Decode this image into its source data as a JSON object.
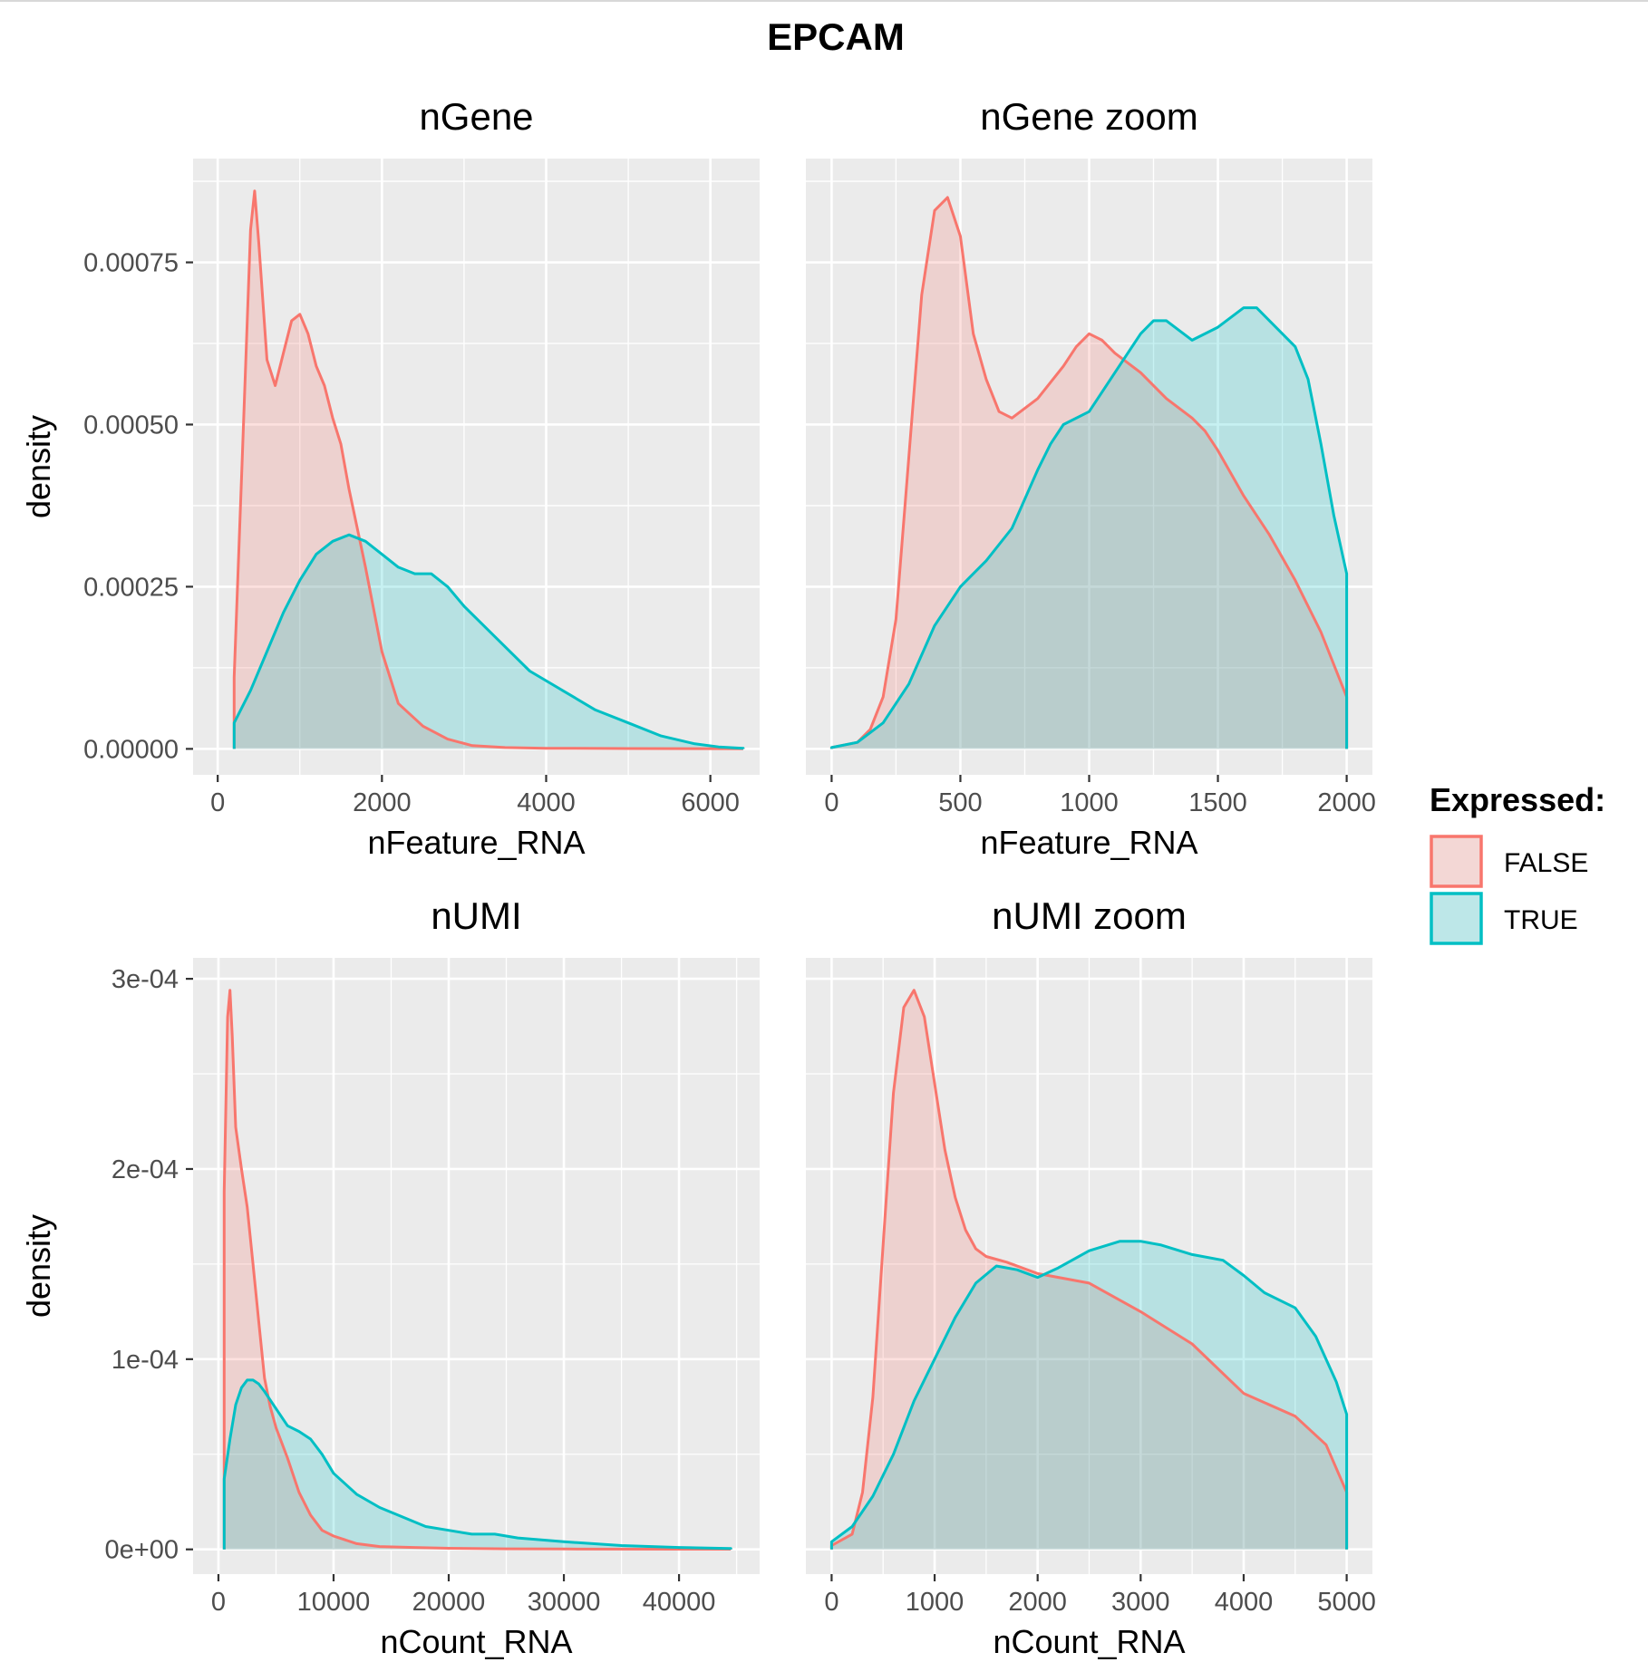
{
  "figure": {
    "title": "EPCAM",
    "legend": {
      "title": "Expressed:",
      "items": [
        {
          "label": "FALSE",
          "line": "#F8766D",
          "fill": "#F8766D"
        },
        {
          "label": "TRUE",
          "line": "#00BFC4",
          "fill": "#00BFC4"
        }
      ],
      "placement": "right"
    },
    "colors": {
      "panel_bg": "#EBEBEB",
      "grid": "#FFFFFF",
      "false": "#F8766D",
      "true": "#00BFC4"
    }
  },
  "chart_data": [
    {
      "type": "area",
      "title": "nGene",
      "xlabel": "nFeature_RNA",
      "ylabel": "density",
      "xlim": [
        -300,
        6600
      ],
      "ylim": [
        -4e-05,
        0.00091
      ],
      "xticks": [
        0,
        2000,
        4000,
        6000
      ],
      "xtick_labels": [
        "0",
        "2000",
        "4000",
        "6000"
      ],
      "yticks": [
        0,
        0.00025,
        0.0005,
        0.00075
      ],
      "ytick_labels": [
        "0.00000",
        "0.00025",
        "0.00050",
        "0.00075"
      ],
      "series": [
        {
          "name": "FALSE",
          "x": [
            200,
            300,
            400,
            450,
            500,
            600,
            700,
            800,
            900,
            1000,
            1100,
            1200,
            1300,
            1400,
            1500,
            1600,
            1800,
            2000,
            2200,
            2500,
            2800,
            3100,
            3500,
            4000,
            5000,
            6400
          ],
          "values": [
            0.00011,
            0.00045,
            0.0008,
            0.00086,
            0.00078,
            0.0006,
            0.00056,
            0.00061,
            0.00066,
            0.00067,
            0.00064,
            0.00059,
            0.00056,
            0.00051,
            0.00047,
            0.0004,
            0.00028,
            0.00015,
            7e-05,
            3.5e-05,
            1.5e-05,
            5e-06,
            2e-06,
            1e-06,
            5e-07,
            3e-07
          ]
        },
        {
          "name": "TRUE",
          "x": [
            200,
            400,
            600,
            800,
            1000,
            1200,
            1400,
            1600,
            1800,
            2000,
            2200,
            2400,
            2600,
            2800,
            3000,
            3400,
            3800,
            4200,
            4600,
            5000,
            5400,
            5800,
            6100,
            6400
          ],
          "values": [
            4e-05,
            9e-05,
            0.00015,
            0.00021,
            0.00026,
            0.0003,
            0.00032,
            0.00033,
            0.00032,
            0.0003,
            0.00028,
            0.00027,
            0.00027,
            0.00025,
            0.00022,
            0.00017,
            0.00012,
            9e-05,
            6e-05,
            4e-05,
            2e-05,
            8e-06,
            3e-06,
            1e-06
          ]
        }
      ]
    },
    {
      "type": "area",
      "title": "nGene zoom",
      "xlabel": "nFeature_RNA",
      "ylabel": "",
      "xlim": [
        -100,
        2100
      ],
      "ylim": [
        -4e-05,
        0.00091
      ],
      "xticks": [
        0,
        500,
        1000,
        1500,
        2000
      ],
      "xtick_labels": [
        "0",
        "500",
        "1000",
        "1500",
        "2000"
      ],
      "yticks": [
        0,
        0.00025,
        0.0005,
        0.00075
      ],
      "ytick_labels": [],
      "series": [
        {
          "name": "FALSE",
          "x": [
            0,
            100,
            150,
            200,
            250,
            300,
            350,
            400,
            450,
            500,
            550,
            600,
            650,
            700,
            800,
            900,
            950,
            1000,
            1050,
            1100,
            1200,
            1300,
            1400,
            1450,
            1500,
            1600,
            1700,
            1800,
            1900,
            2000
          ],
          "values": [
            2e-06,
            1e-05,
            3e-05,
            8e-05,
            0.0002,
            0.00045,
            0.0007,
            0.00083,
            0.00085,
            0.00079,
            0.00064,
            0.00057,
            0.00052,
            0.00051,
            0.00054,
            0.00059,
            0.00062,
            0.00064,
            0.00063,
            0.00061,
            0.00058,
            0.00054,
            0.00051,
            0.00049,
            0.00046,
            0.00039,
            0.00033,
            0.00026,
            0.00018,
            8e-05
          ]
        },
        {
          "name": "TRUE",
          "x": [
            0,
            100,
            200,
            300,
            400,
            500,
            600,
            700,
            800,
            850,
            900,
            1000,
            1100,
            1200,
            1250,
            1300,
            1400,
            1500,
            1600,
            1650,
            1700,
            1800,
            1850,
            1900,
            1950,
            2000
          ],
          "values": [
            2e-06,
            1e-05,
            4e-05,
            0.0001,
            0.00019,
            0.00025,
            0.00029,
            0.00034,
            0.00043,
            0.00047,
            0.0005,
            0.00052,
            0.00058,
            0.00064,
            0.00066,
            0.00066,
            0.00063,
            0.00065,
            0.00068,
            0.00068,
            0.00066,
            0.00062,
            0.00057,
            0.00047,
            0.00036,
            0.00027
          ]
        }
      ]
    },
    {
      "type": "area",
      "title": "nUMI",
      "xlabel": "nCount_RNA",
      "ylabel": "density",
      "xlim": [
        -2200,
        47000
      ],
      "ylim": [
        -1.3e-05,
        0.000311
      ],
      "xticks": [
        0,
        10000,
        20000,
        30000,
        40000
      ],
      "xtick_labels": [
        "0",
        "10000",
        "20000",
        "30000",
        "40000"
      ],
      "yticks": [
        0,
        0.0001,
        0.0002,
        0.0003
      ],
      "ytick_labels": [
        "0e+00",
        "1e-04",
        "2e-04",
        "3e-04"
      ],
      "series": [
        {
          "name": "FALSE",
          "x": [
            500,
            800,
            1000,
            1200,
            1500,
            2000,
            2500,
            3000,
            3500,
            4000,
            4500,
            5000,
            6000,
            7000,
            8000,
            9000,
            10000,
            12000,
            14000,
            17000,
            20000,
            25000,
            30000,
            40000,
            44500
          ],
          "values": [
            0.000188,
            0.00028,
            0.000294,
            0.00027,
            0.000222,
            0.0002,
            0.00018,
            0.00015,
            0.00012,
            9e-05,
            7.5e-05,
            6.4e-05,
            4.8e-05,
            3e-05,
            1.8e-05,
            1e-05,
            7e-06,
            3e-06,
            1.5e-06,
            1e-06,
            6e-07,
            3e-07,
            2e-07,
            1e-07,
            1e-07
          ]
        },
        {
          "name": "TRUE",
          "x": [
            500,
            1000,
            1500,
            2000,
            2500,
            3000,
            3500,
            4000,
            5000,
            6000,
            7000,
            8000,
            9000,
            10000,
            12000,
            14000,
            16000,
            18000,
            20000,
            22000,
            24000,
            26000,
            30000,
            35000,
            40000,
            44500
          ],
          "values": [
            3.7e-05,
            5.8e-05,
            7.6e-05,
            8.5e-05,
            8.9e-05,
            8.9e-05,
            8.7e-05,
            8.3e-05,
            7.4e-05,
            6.5e-05,
            6.2e-05,
            5.8e-05,
            5e-05,
            4e-05,
            2.9e-05,
            2.2e-05,
            1.7e-05,
            1.2e-05,
            1e-05,
            8e-06,
            8e-06,
            6e-06,
            4e-06,
            2e-06,
            1e-06,
            5e-07
          ]
        }
      ]
    },
    {
      "type": "area",
      "title": "nUMI zoom",
      "xlabel": "nCount_RNA",
      "ylabel": "",
      "xlim": [
        -250,
        5250
      ],
      "ylim": [
        -1.3e-05,
        0.000311
      ],
      "xticks": [
        0,
        1000,
        2000,
        3000,
        4000,
        5000
      ],
      "xtick_labels": [
        "0",
        "1000",
        "2000",
        "3000",
        "4000",
        "5000"
      ],
      "yticks": [
        0,
        0.0001,
        0.0002,
        0.0003
      ],
      "ytick_labels": [],
      "series": [
        {
          "name": "FALSE",
          "x": [
            0,
            200,
            300,
            400,
            500,
            600,
            700,
            800,
            900,
            1000,
            1100,
            1200,
            1300,
            1400,
            1500,
            1700,
            2000,
            2500,
            3000,
            3500,
            4000,
            4500,
            4800,
            5000
          ],
          "values": [
            2e-06,
            8e-06,
            3e-05,
            8e-05,
            0.00016,
            0.00024,
            0.000285,
            0.000294,
            0.00028,
            0.000245,
            0.00021,
            0.000185,
            0.000168,
            0.000158,
            0.000154,
            0.000151,
            0.000145,
            0.00014,
            0.000125,
            0.000108,
            8.2e-05,
            7e-05,
            5.5e-05,
            3e-05
          ]
        },
        {
          "name": "TRUE",
          "x": [
            0,
            200,
            400,
            600,
            800,
            1000,
            1200,
            1400,
            1600,
            1800,
            2000,
            2200,
            2500,
            2800,
            3000,
            3200,
            3500,
            3800,
            4000,
            4200,
            4500,
            4700,
            4900,
            5000
          ],
          "values": [
            4e-06,
            1.2e-05,
            2.8e-05,
            5e-05,
            7.8e-05,
            0.0001,
            0.000122,
            0.00014,
            0.000149,
            0.000147,
            0.000143,
            0.000148,
            0.000157,
            0.000162,
            0.000162,
            0.00016,
            0.000155,
            0.000152,
            0.000144,
            0.000135,
            0.000127,
            0.000112,
            8.8e-05,
            7.1e-05
          ]
        }
      ]
    }
  ]
}
